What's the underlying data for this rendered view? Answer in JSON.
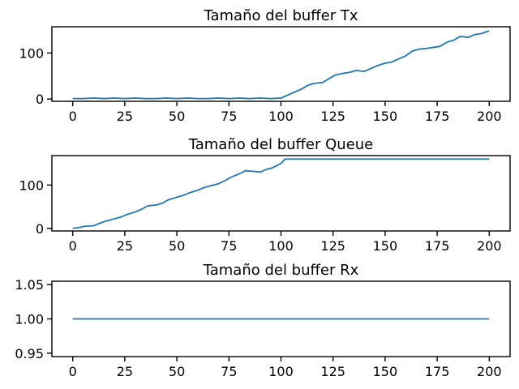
{
  "chart_data": [
    {
      "type": "line",
      "title": "Tamaño del buffer Tx",
      "xlabel": "",
      "ylabel": "",
      "xlim": [
        -10,
        210
      ],
      "ylim": [
        -5,
        157
      ],
      "xticks": [
        0,
        25,
        50,
        75,
        100,
        125,
        150,
        175,
        200
      ],
      "yticks": [
        0,
        100
      ],
      "series": [
        {
          "color": "#1f77b4",
          "x": [
            0,
            5,
            10,
            15,
            20,
            25,
            30,
            35,
            40,
            45,
            50,
            55,
            60,
            65,
            70,
            75,
            80,
            85,
            90,
            95,
            100,
            103,
            106,
            110,
            113,
            116,
            120,
            123,
            126,
            130,
            133,
            136,
            140,
            143,
            146,
            150,
            153,
            156,
            160,
            163,
            166,
            170,
            173,
            176,
            180,
            183,
            186,
            190,
            193,
            196,
            200
          ],
          "y": [
            1,
            1,
            2,
            1,
            2,
            1,
            2,
            1,
            1,
            2,
            1,
            2,
            1,
            1,
            2,
            1,
            2,
            1,
            2,
            1,
            2,
            8,
            14,
            22,
            30,
            34,
            36,
            44,
            52,
            56,
            58,
            62,
            60,
            66,
            72,
            78,
            80,
            86,
            94,
            104,
            108,
            110,
            112,
            114,
            124,
            128,
            136,
            134,
            140,
            142,
            148
          ]
        }
      ]
    },
    {
      "type": "line",
      "title": "Tamaño del buffer Queue",
      "xlabel": "",
      "ylabel": "",
      "xlim": [
        -10,
        210
      ],
      "ylim": [
        -6,
        168
      ],
      "xticks": [
        0,
        25,
        50,
        75,
        100,
        125,
        150,
        175,
        200
      ],
      "yticks": [
        0,
        100
      ],
      "series": [
        {
          "color": "#1f77b4",
          "x": [
            0,
            3,
            6,
            10,
            13,
            16,
            20,
            23,
            26,
            30,
            33,
            36,
            40,
            43,
            46,
            50,
            53,
            56,
            60,
            63,
            66,
            70,
            73,
            76,
            80,
            83,
            86,
            90,
            93,
            96,
            100,
            102,
            110,
            120,
            130,
            140,
            150,
            160,
            170,
            180,
            190,
            200
          ],
          "y": [
            0,
            2,
            5,
            6,
            12,
            17,
            22,
            26,
            32,
            38,
            44,
            52,
            54,
            58,
            66,
            72,
            76,
            82,
            88,
            94,
            98,
            103,
            110,
            118,
            126,
            133,
            132,
            130,
            136,
            140,
            150,
            160,
            160,
            160,
            160,
            160,
            160,
            160,
            160,
            160,
            160,
            160
          ]
        }
      ]
    },
    {
      "type": "line",
      "title": "Tamaño del buffer Rx",
      "xlabel": "",
      "ylabel": "",
      "xlim": [
        -10,
        210
      ],
      "ylim": [
        0.945,
        1.055
      ],
      "xticks": [
        0,
        25,
        50,
        75,
        100,
        125,
        150,
        175,
        200
      ],
      "yticks": [
        0.95,
        1.0,
        1.05
      ],
      "ytick_labels": [
        "0.95",
        "1.00",
        "1.05"
      ],
      "series": [
        {
          "color": "#1f77b4",
          "x": [
            0,
            200
          ],
          "y": [
            1.0,
            1.0
          ]
        }
      ]
    }
  ]
}
